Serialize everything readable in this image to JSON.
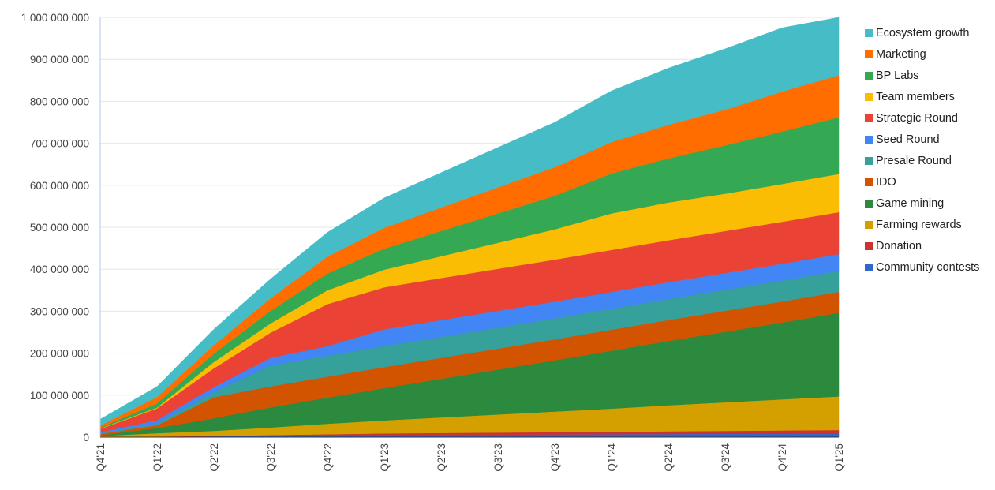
{
  "chart_data": {
    "type": "area",
    "stacked": true,
    "title": "",
    "xlabel": "",
    "ylabel": "",
    "ylim": [
      0,
      1000000000
    ],
    "yticks": [
      0,
      100000000,
      200000000,
      300000000,
      400000000,
      500000000,
      600000000,
      700000000,
      800000000,
      900000000,
      1000000000
    ],
    "ytick_labels": [
      "0",
      "100 000 000",
      "200 000 000",
      "300 000 000",
      "400 000 000",
      "500 000 000",
      "600 000 000",
      "700 000 000",
      "800 000 000",
      "900 000 000",
      "1 000 000 000"
    ],
    "grid": true,
    "legend_position": "right",
    "categories": [
      "Q4'21",
      "Q1'22",
      "Q2'22",
      "Q3'22",
      "Q4'22",
      "Q1'23",
      "Q2'23",
      "Q3'23",
      "Q4'23",
      "Q1'24",
      "Q2'24",
      "Q3'24",
      "Q4'24",
      "Q1'25"
    ],
    "series": [
      {
        "name": "Community contests",
        "color": "#3366cc",
        "values": [
          500000,
          1000000,
          2000000,
          3000000,
          4000000,
          5000000,
          5500000,
          6000000,
          6500000,
          7000000,
          7500000,
          8000000,
          8500000,
          9000000
        ]
      },
      {
        "name": "Donation",
        "color": "#cc3333",
        "values": [
          300000,
          500000,
          1000000,
          2000000,
          3000000,
          4000000,
          4500000,
          5000000,
          5500000,
          6000000,
          6500000,
          7000000,
          7500000,
          8000000
        ]
      },
      {
        "name": "Farming rewards",
        "color": "#d4a000",
        "values": [
          2000000,
          8000000,
          12000000,
          18000000,
          25000000,
          31000000,
          37000000,
          43000000,
          49000000,
          55000000,
          62000000,
          68000000,
          74000000,
          80000000
        ]
      },
      {
        "name": "Game mining",
        "color": "#2b8a3e",
        "values": [
          2000000,
          12000000,
          30000000,
          48000000,
          62000000,
          77000000,
          92000000,
          107000000,
          122000000,
          138000000,
          153000000,
          168000000,
          183000000,
          199000000
        ]
      },
      {
        "name": "IDO",
        "color": "#d35400",
        "values": [
          3000000,
          7000000,
          50000000,
          50000000,
          50000000,
          50000000,
          50000000,
          50000000,
          50000000,
          50000000,
          50000000,
          50000000,
          50000000,
          50000000
        ]
      },
      {
        "name": "Presale Round",
        "color": "#36a09a",
        "values": [
          1000000,
          4000000,
          12000000,
          50000000,
          50000000,
          50000000,
          50000000,
          50000000,
          50000000,
          50000000,
          50000000,
          50000000,
          50000000,
          50000000
        ]
      },
      {
        "name": "Seed Round",
        "color": "#4285f4",
        "values": [
          3000000,
          8000000,
          12000000,
          18000000,
          23000000,
          40000000,
          40000000,
          40000000,
          40000000,
          40000000,
          40000000,
          40000000,
          40000000,
          40000000
        ]
      },
      {
        "name": "Strategic Round",
        "color": "#ea4335",
        "values": [
          8000000,
          28000000,
          45000000,
          60000000,
          100000000,
          100000000,
          100000000,
          100000000,
          100000000,
          100000000,
          100000000,
          100000000,
          100000000,
          100000000
        ]
      },
      {
        "name": "Team members",
        "color": "#fbbc04",
        "values": [
          1000000,
          2000000,
          15000000,
          22000000,
          33000000,
          42000000,
          52000000,
          62000000,
          72000000,
          87000000,
          90000000,
          89000000,
          90000000,
          91000000
        ]
      },
      {
        "name": "BP Labs",
        "color": "#34a853",
        "values": [
          2000000,
          10000000,
          20000000,
          30000000,
          40000000,
          50000000,
          60000000,
          70000000,
          80000000,
          95000000,
          105000000,
          115000000,
          125000000,
          135000000
        ]
      },
      {
        "name": "Marketing",
        "color": "#ff6d00",
        "values": [
          5000000,
          15000000,
          20000000,
          30000000,
          40000000,
          50000000,
          56000000,
          62000000,
          68000000,
          75000000,
          80000000,
          85000000,
          95000000,
          100000000
        ]
      },
      {
        "name": "Ecosystem growth",
        "color": "#46bdc6",
        "values": [
          15000000,
          25000000,
          38000000,
          46000000,
          58000000,
          71000000,
          83000000,
          95000000,
          107000000,
          122000000,
          135000000,
          145000000,
          152000000,
          138000000
        ]
      }
    ]
  }
}
